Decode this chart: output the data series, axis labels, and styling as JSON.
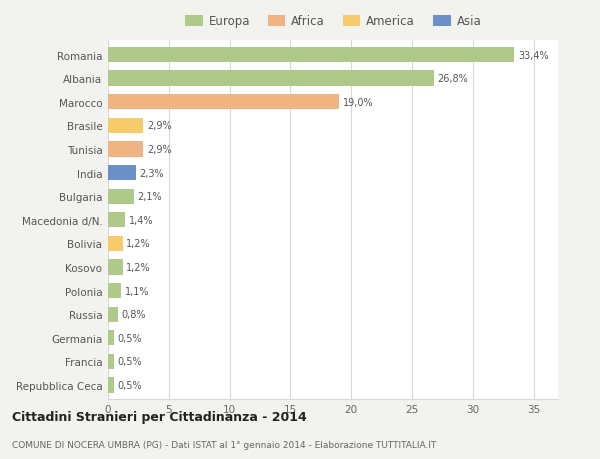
{
  "countries": [
    "Romania",
    "Albania",
    "Marocco",
    "Brasile",
    "Tunisia",
    "India",
    "Bulgaria",
    "Macedonia d/N.",
    "Bolivia",
    "Kosovo",
    "Polonia",
    "Russia",
    "Germania",
    "Francia",
    "Repubblica Ceca"
  ],
  "values": [
    33.4,
    26.8,
    19.0,
    2.9,
    2.9,
    2.3,
    2.1,
    1.4,
    1.2,
    1.2,
    1.1,
    0.8,
    0.5,
    0.5,
    0.5
  ],
  "labels": [
    "33,4%",
    "26,8%",
    "19,0%",
    "2,9%",
    "2,9%",
    "2,3%",
    "2,1%",
    "1,4%",
    "1,2%",
    "1,2%",
    "1,1%",
    "0,8%",
    "0,5%",
    "0,5%",
    "0,5%"
  ],
  "colors": [
    "#aec98a",
    "#aec98a",
    "#f0b483",
    "#f5cb6b",
    "#f0b483",
    "#6b8fc7",
    "#aec98a",
    "#aec98a",
    "#f5cb6b",
    "#aec98a",
    "#aec98a",
    "#aec98a",
    "#aec98a",
    "#aec98a",
    "#aec98a"
  ],
  "legend_labels": [
    "Europa",
    "Africa",
    "America",
    "Asia"
  ],
  "legend_colors": [
    "#aec98a",
    "#f0b483",
    "#f5cb6b",
    "#6b8fc7"
  ],
  "title": "Cittadini Stranieri per Cittadinanza - 2014",
  "subtitle": "COMUNE DI NOCERA UMBRA (PG) - Dati ISTAT al 1° gennaio 2014 - Elaborazione TUTTITALIA.IT",
  "xlim": [
    0,
    37
  ],
  "xticks": [
    0,
    5,
    10,
    15,
    20,
    25,
    30,
    35
  ],
  "background_color": "#f2f2ee",
  "bar_background": "#ffffff",
  "grid_color": "#d8d8d8"
}
